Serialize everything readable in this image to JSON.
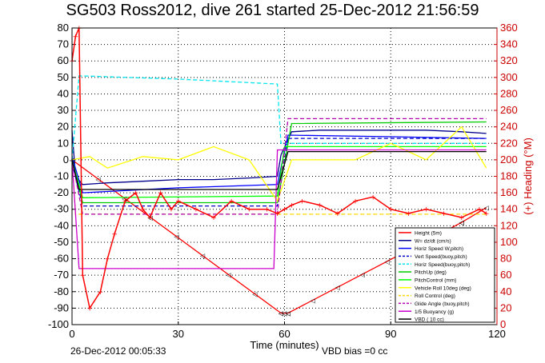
{
  "chart_data": {
    "type": "line",
    "title": "SG503 Ross2012, dive 261 started 25-Dec-2012 21:56:59",
    "xlabel": "Time (minutes)",
    "ylabel": "",
    "y2label": "(+) Heading (°M)",
    "xlim": [
      0,
      120
    ],
    "ylim": [
      -100,
      80
    ],
    "y2lim": [
      0,
      360
    ],
    "x_ticks": [
      "0",
      "30",
      "60",
      "90",
      "120"
    ],
    "y_ticks": [
      "80",
      "70",
      "60",
      "50",
      "40",
      "30",
      "20",
      "10",
      "0",
      "-10",
      "-20",
      "-30",
      "-40",
      "-50",
      "-60",
      "-70",
      "-80",
      "-90",
      "-100"
    ],
    "y2_ticks": [
      "360",
      "340",
      "320",
      "300",
      "280",
      "260",
      "240",
      "220",
      "200",
      "180",
      "160",
      "140",
      "120",
      "100",
      "80",
      "60",
      "40",
      "20",
      "0"
    ],
    "grid": true,
    "legend_position": "bottom-right",
    "footer_left": "26-Dec-2012 00:05:33",
    "footer_right": "VBD bias =0 cc",
    "series": [
      {
        "name": "Height (5m)",
        "color": "#ff0000",
        "x": [
          0,
          59,
          60,
          61,
          110,
          117
        ],
        "y": [
          0,
          -93,
          -93,
          -93,
          -38,
          -29
        ]
      },
      {
        "name": "W= dz/dt (cm/s)",
        "color": "#00008b",
        "x": [
          0,
          1,
          3,
          10,
          20,
          30,
          40,
          50,
          58,
          59,
          62,
          70,
          80,
          90,
          100,
          110,
          117
        ],
        "y": [
          18,
          -10,
          -15,
          -14,
          -13,
          -12,
          -12,
          -11,
          -10,
          3,
          17,
          18,
          18,
          18,
          18,
          17,
          16
        ]
      },
      {
        "name": "Horiz Speed W,pitch)",
        "color": "#0000ff",
        "x": [
          0,
          3,
          30,
          58,
          61,
          90,
          117
        ],
        "y": [
          2,
          -20,
          -17,
          -15,
          15,
          14,
          13
        ]
      },
      {
        "name": "Vert Speed(buoy,pitch)",
        "color": "#0000cd",
        "x": [
          0,
          3,
          58,
          61,
          117
        ],
        "y": [
          -2,
          -28,
          -28,
          13,
          13
        ]
      },
      {
        "name": "Horiz Speed(buoy,pitch)",
        "color": "#00e5ee",
        "x": [
          0,
          2,
          30,
          58,
          59,
          117
        ],
        "y": [
          0,
          51,
          49,
          46,
          10,
          10
        ]
      },
      {
        "name": "PitchUp (deg)",
        "color": "#00cc00",
        "x": [
          0,
          3,
          58,
          62,
          117
        ],
        "y": [
          0,
          -26,
          -26,
          22,
          23
        ]
      },
      {
        "name": "PitchControl (mm)",
        "color": "#00ff00",
        "x": [
          0,
          3,
          58,
          60,
          117
        ],
        "y": [
          0,
          -23,
          -22,
          8,
          8
        ]
      },
      {
        "name": "Vehicle Roll 10deg (deg)",
        "color": "#ffff00",
        "x": [
          0,
          5,
          10,
          20,
          30,
          40,
          50,
          58,
          62,
          70,
          80,
          90,
          100,
          110,
          117
        ],
        "y": [
          0,
          2,
          -5,
          2,
          0,
          8,
          0,
          -25,
          0,
          0,
          0,
          10,
          0,
          20,
          -5
        ]
      },
      {
        "name": "Roll Control (deg)",
        "color": "#ffd700",
        "x": [
          0,
          1,
          117
        ],
        "y": [
          0,
          -33,
          -33
        ]
      },
      {
        "name": "Glide Angle (buoy,pitch)",
        "color": "#b000b0",
        "x": [
          0,
          3,
          58,
          61,
          117
        ],
        "y": [
          0,
          -33,
          -33,
          25,
          25
        ]
      },
      {
        "name": "1/5 Buoyancy (g)",
        "color": "#cc00cc",
        "x": [
          0,
          2,
          57,
          58,
          117
        ],
        "y": [
          0,
          -66,
          -66,
          6,
          6
        ]
      },
      {
        "name": "VBD ( 10 cc)",
        "color": "#000000",
        "x": [
          0,
          2,
          58,
          61,
          117
        ],
        "y": [
          0,
          -18,
          -18,
          5,
          5
        ]
      }
    ],
    "heading_series": {
      "name": "(+) Heading (°M)",
      "color": "#ff0000",
      "x": [
        0,
        1,
        2,
        3,
        5,
        8,
        10,
        12,
        15,
        18,
        20,
        22,
        25,
        28,
        30,
        35,
        40,
        45,
        50,
        55,
        58,
        60,
        62,
        65,
        70,
        75,
        80,
        85,
        90,
        95,
        100,
        105,
        110,
        115,
        117
      ],
      "y": [
        320,
        350,
        360,
        60,
        20,
        40,
        80,
        110,
        150,
        160,
        140,
        130,
        160,
        140,
        150,
        140,
        130,
        150,
        140,
        140,
        135,
        140,
        145,
        150,
        145,
        135,
        150,
        155,
        140,
        135,
        140,
        135,
        130,
        140,
        135
      ]
    }
  }
}
